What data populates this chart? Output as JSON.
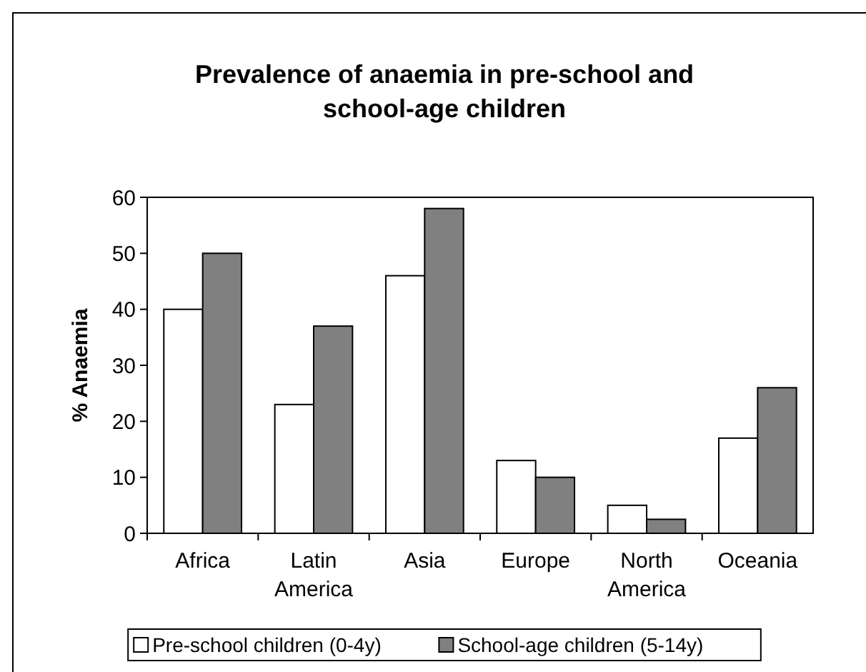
{
  "chart_data": {
    "type": "bar",
    "title": "Prevalence of anaemia in pre-school and school-age children",
    "ylabel": "% Anaemia",
    "categories": [
      "Africa",
      "Latin America",
      "Asia",
      "Europe",
      "North America",
      "Oceania"
    ],
    "series": [
      {
        "name": "Pre-school children (0-4y)",
        "color": "#ffffff",
        "values": [
          40,
          23,
          46,
          13,
          5,
          17
        ]
      },
      {
        "name": "School-age children (5-14y)",
        "color": "#808080",
        "values": [
          50,
          37,
          58,
          10,
          2.5,
          26
        ]
      }
    ],
    "ylim": [
      0,
      60
    ],
    "yticks": [
      0,
      10,
      20,
      30,
      40,
      50,
      60
    ],
    "legend": "bottom"
  }
}
